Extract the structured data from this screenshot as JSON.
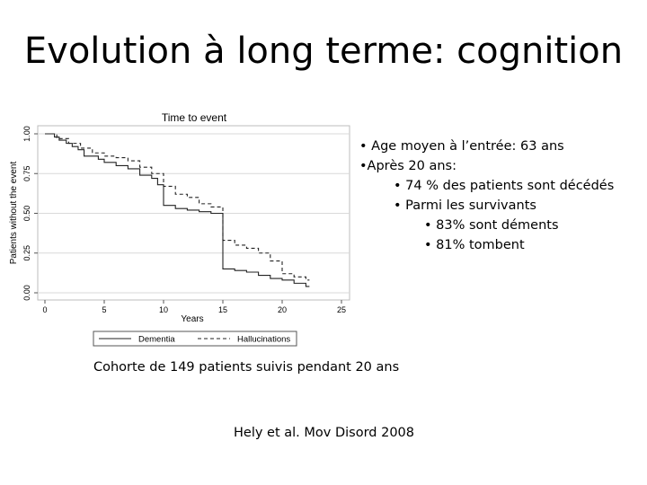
{
  "slide": {
    "title": "Evolution à long terme: cognition",
    "bullets": [
      {
        "level": 1,
        "text": "• Age moyen à l’entrée: 63 ans"
      },
      {
        "level": 1,
        "text": "•Après 20 ans:"
      },
      {
        "level": 2,
        "text": "• 74 % des patients sont décédés"
      },
      {
        "level": 2,
        "text": "• Parmi les survivants"
      },
      {
        "level": 3,
        "text": "• 83% sont déments"
      },
      {
        "level": 3,
        "text": "• 81% tombent"
      }
    ],
    "caption": "Cohorte de 149 patients suivis pendant 20 ans",
    "reference": "Hely et al. Mov Disord 2008"
  },
  "chart_data": {
    "type": "line",
    "title": "Time to event",
    "xlabel": "Years",
    "ylabel": "Patients without the event",
    "xlim": [
      0,
      25
    ],
    "ylim": [
      0,
      1
    ],
    "xticks": [
      "0",
      "5",
      "10",
      "15",
      "20",
      "25"
    ],
    "yticks": [
      "0.00",
      "0.25",
      "0.50",
      "0.75",
      "1.00"
    ],
    "grid": true,
    "legend": "bottom",
    "series": [
      {
        "name": "Dementia",
        "style": "solid",
        "step": true,
        "x": [
          0,
          0.8,
          1.2,
          1.8,
          2.3,
          2.8,
          3.3,
          4.5,
          5,
          6,
          7,
          8,
          9,
          9.5,
          10,
          11,
          12,
          13,
          14,
          15,
          16,
          17,
          18,
          19,
          20,
          21,
          22
        ],
        "y": [
          1.0,
          0.98,
          0.96,
          0.94,
          0.92,
          0.9,
          0.86,
          0.84,
          0.82,
          0.8,
          0.78,
          0.74,
          0.72,
          0.68,
          0.55,
          0.53,
          0.52,
          0.51,
          0.5,
          0.15,
          0.14,
          0.13,
          0.11,
          0.09,
          0.08,
          0.06,
          0.04
        ]
      },
      {
        "name": "Hallucinations",
        "style": "dashed",
        "step": true,
        "x": [
          0,
          1,
          2,
          3,
          4,
          5,
          6,
          7,
          8,
          9,
          10,
          11,
          12,
          13,
          14,
          15,
          16,
          17,
          18,
          19,
          20,
          21,
          22
        ],
        "y": [
          1.0,
          0.97,
          0.94,
          0.91,
          0.88,
          0.86,
          0.85,
          0.83,
          0.79,
          0.75,
          0.67,
          0.62,
          0.6,
          0.56,
          0.54,
          0.33,
          0.3,
          0.28,
          0.25,
          0.2,
          0.12,
          0.1,
          0.08
        ]
      }
    ]
  }
}
